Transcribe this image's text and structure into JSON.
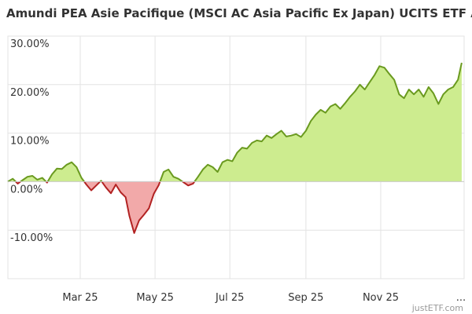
{
  "chart_data": {
    "type": "area",
    "title": "Amundi PEA Asie Pacifique (MSCI AC Asia Pacific Ex Japan) UCITS ETF Acc",
    "xlabel": "",
    "ylabel": "",
    "y_unit": "%",
    "ylim": [
      -20,
      30
    ],
    "y_ticks": [
      "30.00%",
      "20.00%",
      "10.00%",
      "0.00%",
      "-10.00%"
    ],
    "y_tick_values": [
      30,
      20,
      10,
      0,
      -10
    ],
    "x_ticks": [
      "Mar 25",
      "May 25",
      "Jul 25",
      "Sep 25",
      "Nov 25",
      "..."
    ],
    "x_tick_dates": [
      "2025-03-01",
      "2025-05-01",
      "2025-07-01",
      "2025-09-01",
      "2025-11-01"
    ],
    "x_range": [
      "2025-01-01",
      "2026-01-08"
    ],
    "grid": true,
    "credit": "justETF.com",
    "colors": {
      "positive_line": "#6a9a1f",
      "positive_fill": "#cdec8f",
      "negative_line": "#b22222",
      "negative_fill": "#f2a9a9",
      "grid": "#e3e3e3"
    },
    "series": [
      {
        "x": [
          "2025-01-01",
          "2025-01-05",
          "2025-01-09",
          "2025-01-13",
          "2025-01-17",
          "2025-01-21",
          "2025-01-25",
          "2025-01-29",
          "2025-02-02",
          "2025-02-06",
          "2025-02-10",
          "2025-02-14",
          "2025-02-18",
          "2025-02-22",
          "2025-02-26",
          "2025-03-02",
          "2025-03-06",
          "2025-03-10",
          "2025-03-14",
          "2025-03-18",
          "2025-03-22",
          "2025-03-26",
          "2025-03-30",
          "2025-04-03",
          "2025-04-07",
          "2025-04-10",
          "2025-04-14",
          "2025-04-18",
          "2025-04-22",
          "2025-04-26",
          "2025-04-30",
          "2025-05-04",
          "2025-05-08",
          "2025-05-12",
          "2025-05-16",
          "2025-05-20",
          "2025-05-24",
          "2025-05-28",
          "2025-06-01",
          "2025-06-05",
          "2025-06-09",
          "2025-06-13",
          "2025-06-17",
          "2025-06-21",
          "2025-06-25",
          "2025-06-29",
          "2025-07-03",
          "2025-07-07",
          "2025-07-11",
          "2025-07-15",
          "2025-07-19",
          "2025-07-23",
          "2025-07-27",
          "2025-07-31",
          "2025-08-04",
          "2025-08-08",
          "2025-08-12",
          "2025-08-16",
          "2025-08-20",
          "2025-08-24",
          "2025-08-28",
          "2025-09-01",
          "2025-09-05",
          "2025-09-09",
          "2025-09-13",
          "2025-09-17",
          "2025-09-21",
          "2025-09-25",
          "2025-09-29",
          "2025-10-03",
          "2025-10-07",
          "2025-10-11",
          "2025-10-15",
          "2025-10-19",
          "2025-10-23",
          "2025-10-27",
          "2025-10-31",
          "2025-11-04",
          "2025-11-08",
          "2025-11-12",
          "2025-11-16",
          "2025-11-20",
          "2025-11-24",
          "2025-11-28",
          "2025-12-02",
          "2025-12-06",
          "2025-12-10",
          "2025-12-14",
          "2025-12-18",
          "2025-12-22",
          "2025-12-26",
          "2025-12-30",
          "2026-01-03",
          "2026-01-06"
        ],
        "values": [
          0,
          0.6,
          -0.4,
          0.3,
          1.0,
          1.2,
          0.4,
          0.8,
          -0.2,
          1.5,
          2.7,
          2.6,
          3.5,
          4.0,
          3.0,
          0.8,
          -0.6,
          -1.8,
          -0.8,
          0.2,
          -1.2,
          -2.4,
          -0.6,
          -2.2,
          -3.2,
          -7.0,
          -10.6,
          -8.0,
          -6.8,
          -5.5,
          -2.5,
          -0.7,
          2.0,
          2.5,
          1.0,
          0.6,
          -0.1,
          -0.8,
          -0.4,
          1.0,
          2.5,
          3.5,
          3.0,
          2.0,
          4.0,
          4.5,
          4.2,
          6.0,
          7.0,
          6.8,
          8.0,
          8.5,
          8.3,
          9.5,
          9.0,
          9.8,
          10.5,
          9.3,
          9.5,
          9.8,
          9.2,
          10.5,
          12.5,
          13.8,
          14.8,
          14.2,
          15.5,
          16.0,
          15.0,
          16.2,
          17.5,
          18.6,
          20.0,
          19.0,
          20.5,
          22.0,
          23.8,
          23.5,
          22.2,
          21.0,
          18.0,
          17.2,
          19.0,
          18.0,
          19.0,
          17.5,
          19.5,
          18.2,
          16.0,
          18.0,
          19.0,
          19.5,
          21.0,
          24.5
        ]
      }
    ]
  }
}
